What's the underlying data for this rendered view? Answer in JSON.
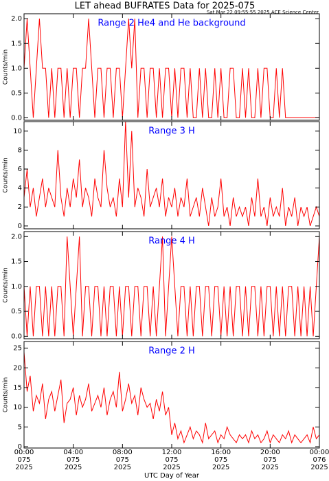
{
  "title": "LET ahead BUFRATES Data for 2025-075",
  "subtitle": "Sat Mar 22 09:55:55 2025 ACE Science Center",
  "xlabel": "UTC Day of Year",
  "chart_data": [
    {
      "type": "line",
      "title": "Range 2 He4 and He background",
      "ylabel": "Counts/min",
      "xlim": [
        0,
        24
      ],
      "ylim": [
        -0.05,
        2.1
      ],
      "yticks": [
        {
          "value": 0,
          "label": "0.0"
        },
        {
          "value": 0.5,
          "label": "0.5"
        },
        {
          "value": 1,
          "label": "1.0"
        },
        {
          "value": 1.5,
          "label": "1.5"
        },
        {
          "value": 2,
          "label": "2.0"
        }
      ],
      "x": [
        0,
        0.25,
        0.5,
        0.75,
        1,
        1.25,
        1.5,
        1.75,
        2,
        2.25,
        2.5,
        2.75,
        3,
        3.25,
        3.5,
        3.75,
        4,
        4.25,
        4.5,
        4.75,
        5,
        5.25,
        5.5,
        5.75,
        6,
        6.25,
        6.5,
        6.75,
        7,
        7.25,
        7.5,
        7.75,
        8,
        8.25,
        8.5,
        8.75,
        9,
        9.25,
        9.5,
        9.75,
        10,
        10.25,
        10.5,
        10.75,
        11,
        11.25,
        11.5,
        11.75,
        12,
        12.25,
        12.5,
        12.75,
        13,
        13.25,
        13.5,
        13.75,
        14,
        14.25,
        14.5,
        14.75,
        15,
        15.25,
        15.5,
        15.75,
        16,
        16.25,
        16.5,
        16.75,
        17,
        17.25,
        17.5,
        17.75,
        18,
        18.25,
        18.5,
        18.75,
        19,
        19.25,
        19.5,
        19.75,
        20,
        20.25,
        20.5,
        20.75,
        21,
        21.25,
        21.5,
        21.75,
        22,
        22.25,
        22.5,
        22.75,
        23,
        23.25,
        23.5,
        23.75,
        24
      ],
      "series": [
        {
          "color": "#ff0000",
          "values": [
            1,
            2,
            1,
            0,
            1,
            2,
            1,
            1,
            0,
            1,
            0,
            1,
            1,
            0,
            1,
            0,
            1,
            1,
            0,
            1,
            1,
            2,
            1,
            0,
            1,
            1,
            0,
            1,
            1,
            0,
            1,
            1,
            0,
            1,
            2,
            1,
            2,
            0,
            1,
            1,
            0,
            1,
            1,
            0,
            1,
            0,
            1,
            1,
            0,
            1,
            0,
            1,
            1,
            0,
            1,
            0,
            0,
            1,
            0,
            1,
            0,
            0,
            1,
            0,
            1,
            0,
            0,
            1,
            1,
            0,
            0,
            1,
            0,
            1,
            0,
            0,
            1,
            0,
            1,
            1,
            0,
            0,
            1,
            0,
            1,
            0,
            0,
            0,
            0,
            0,
            0,
            0,
            0,
            0,
            0,
            0,
            0
          ]
        }
      ]
    },
    {
      "type": "line",
      "title": "Range 3 H",
      "ylabel": "Counts/min",
      "xlim": [
        0,
        24
      ],
      "ylim": [
        -0.3,
        11
      ],
      "yticks": [
        0,
        2,
        4,
        6,
        8,
        10
      ],
      "x": [
        0,
        0.25,
        0.5,
        0.75,
        1,
        1.25,
        1.5,
        1.75,
        2,
        2.25,
        2.5,
        2.75,
        3,
        3.25,
        3.5,
        3.75,
        4,
        4.25,
        4.5,
        4.75,
        5,
        5.25,
        5.5,
        5.75,
        6,
        6.25,
        6.5,
        6.75,
        7,
        7.25,
        7.5,
        7.75,
        8,
        8.25,
        8.5,
        8.75,
        9,
        9.25,
        9.5,
        9.75,
        10,
        10.25,
        10.5,
        10.75,
        11,
        11.25,
        11.5,
        11.75,
        12,
        12.25,
        12.5,
        12.75,
        13,
        13.25,
        13.5,
        13.75,
        14,
        14.25,
        14.5,
        14.75,
        15,
        15.25,
        15.5,
        15.75,
        16,
        16.25,
        16.5,
        16.75,
        17,
        17.25,
        17.5,
        17.75,
        18,
        18.25,
        18.5,
        18.75,
        19,
        19.25,
        19.5,
        19.75,
        20,
        20.25,
        20.5,
        20.75,
        21,
        21.25,
        21.5,
        21.75,
        22,
        22.25,
        22.5,
        22.75,
        23,
        23.25,
        23.5,
        23.75,
        24
      ],
      "series": [
        {
          "color": "#ff0000",
          "values": [
            3,
            6,
            2,
            4,
            1,
            3,
            5,
            2,
            4,
            3,
            2,
            8,
            3,
            1,
            4,
            2,
            5,
            3,
            7,
            2,
            4,
            3,
            1,
            5,
            3,
            2,
            8,
            4,
            2,
            3,
            1,
            5,
            2,
            11,
            3,
            10,
            2,
            4,
            3,
            1,
            6,
            2,
            3,
            4,
            2,
            5,
            1,
            3,
            2,
            4,
            1,
            3,
            2,
            5,
            1,
            2,
            3,
            1,
            4,
            2,
            0,
            3,
            1,
            2,
            5,
            1,
            2,
            0,
            3,
            1,
            2,
            1,
            2,
            0,
            3,
            1,
            5,
            1,
            2,
            0,
            3,
            1,
            2,
            1,
            4,
            0,
            2,
            1,
            3,
            0,
            2,
            1,
            2,
            0,
            1,
            2,
            1
          ]
        }
      ]
    },
    {
      "type": "line",
      "title": "Range 4 H",
      "ylabel": "Counts/min",
      "xlim": [
        0,
        24
      ],
      "ylim": [
        -0.05,
        2.1
      ],
      "yticks": [
        {
          "value": 0,
          "label": "0.0"
        },
        {
          "value": 0.5,
          "label": "0.5"
        },
        {
          "value": 1,
          "label": "1.0"
        },
        {
          "value": 1.5,
          "label": "1.5"
        },
        {
          "value": 2,
          "label": "2.0"
        }
      ],
      "x": [
        0,
        0.25,
        0.5,
        0.75,
        1,
        1.25,
        1.5,
        1.75,
        2,
        2.25,
        2.5,
        2.75,
        3,
        3.25,
        3.5,
        3.75,
        4,
        4.25,
        4.5,
        4.75,
        5,
        5.25,
        5.5,
        5.75,
        6,
        6.25,
        6.5,
        6.75,
        7,
        7.25,
        7.5,
        7.75,
        8,
        8.25,
        8.5,
        8.75,
        9,
        9.25,
        9.5,
        9.75,
        10,
        10.25,
        10.5,
        10.75,
        11,
        11.25,
        11.5,
        11.75,
        12,
        12.25,
        12.5,
        12.75,
        13,
        13.25,
        13.5,
        13.75,
        14,
        14.25,
        14.5,
        14.75,
        15,
        15.25,
        15.5,
        15.75,
        16,
        16.25,
        16.5,
        16.75,
        17,
        17.25,
        17.5,
        17.75,
        18,
        18.25,
        18.5,
        18.75,
        19,
        19.25,
        19.5,
        19.75,
        20,
        20.25,
        20.5,
        20.75,
        21,
        21.25,
        21.5,
        21.75,
        22,
        22.25,
        22.5,
        22.75,
        23,
        23.25,
        23.5,
        23.75,
        24
      ],
      "series": [
        {
          "color": "#ff0000",
          "values": [
            1,
            0,
            1,
            0,
            1,
            1,
            0,
            1,
            0,
            1,
            0,
            1,
            1,
            0,
            2,
            1,
            0,
            1,
            2,
            0,
            1,
            1,
            0,
            1,
            1,
            0,
            1,
            0,
            1,
            1,
            0,
            1,
            0,
            1,
            1,
            0,
            1,
            1,
            0,
            1,
            1,
            0,
            1,
            0,
            1,
            2,
            0,
            1,
            2,
            1,
            0,
            1,
            1,
            0,
            1,
            0,
            1,
            1,
            0,
            1,
            1,
            0,
            1,
            1,
            0,
            1,
            0,
            1,
            0,
            1,
            1,
            0,
            1,
            0,
            1,
            1,
            0,
            1,
            0,
            1,
            1,
            0,
            1,
            0,
            1,
            0,
            1,
            1,
            0,
            1,
            0,
            1,
            0,
            1,
            0,
            1,
            2
          ]
        }
      ]
    },
    {
      "type": "line",
      "title": "Range 2 H",
      "ylabel": "Counts/min",
      "xlim": [
        0,
        24
      ],
      "ylim": [
        -0.35,
        26.7
      ],
      "yticks": [
        0,
        5,
        10,
        15,
        20,
        25
      ],
      "xticks": [
        {
          "value": 0,
          "label": [
            "00:00",
            "075",
            "2025"
          ]
        },
        {
          "value": 4,
          "label": [
            "04:00",
            "075",
            "2025"
          ]
        },
        {
          "value": 8,
          "label": [
            "08:00",
            "075",
            "2025"
          ]
        },
        {
          "value": 12,
          "label": [
            "12:00",
            "075",
            "2025"
          ]
        },
        {
          "value": 16,
          "label": [
            "16:00",
            "075",
            "2025"
          ]
        },
        {
          "value": 20,
          "label": [
            "20:00",
            "075",
            "2025"
          ]
        },
        {
          "value": 24,
          "label": [
            "00:00",
            "076",
            "2025"
          ]
        }
      ],
      "x": [
        0,
        0.25,
        0.5,
        0.75,
        1,
        1.25,
        1.5,
        1.75,
        2,
        2.25,
        2.5,
        2.75,
        3,
        3.25,
        3.5,
        3.75,
        4,
        4.25,
        4.5,
        4.75,
        5,
        5.25,
        5.5,
        5.75,
        6,
        6.25,
        6.5,
        6.75,
        7,
        7.25,
        7.5,
        7.75,
        8,
        8.25,
        8.5,
        8.75,
        9,
        9.25,
        9.5,
        9.75,
        10,
        10.25,
        10.5,
        10.75,
        11,
        11.25,
        11.5,
        11.75,
        12,
        12.25,
        12.5,
        12.75,
        13,
        13.25,
        13.5,
        13.75,
        14,
        14.25,
        14.5,
        14.75,
        15,
        15.25,
        15.5,
        15.75,
        16,
        16.25,
        16.5,
        16.75,
        17,
        17.25,
        17.5,
        17.75,
        18,
        18.25,
        18.5,
        18.75,
        19,
        19.25,
        19.5,
        19.75,
        20,
        20.25,
        20.5,
        20.75,
        21,
        21.25,
        21.5,
        21.75,
        22,
        22.25,
        22.5,
        22.75,
        23,
        23.25,
        23.5,
        23.75,
        24
      ],
      "series": [
        {
          "color": "#ff0000",
          "values": [
            24,
            14,
            18,
            9,
            13,
            11,
            16,
            7,
            12,
            14,
            9,
            13,
            17,
            6,
            11,
            12,
            15,
            8,
            13,
            10,
            12,
            16,
            9,
            11,
            13,
            10,
            15,
            8,
            12,
            14,
            10,
            19,
            9,
            12,
            16,
            11,
            13,
            8,
            15,
            12,
            10,
            11,
            7,
            12,
            9,
            14,
            8,
            10,
            3,
            6,
            2,
            4,
            1,
            3,
            5,
            2,
            4,
            3,
            1,
            6,
            2,
            3,
            4,
            1,
            3,
            2,
            5,
            3,
            2,
            1,
            3,
            2,
            3,
            1,
            4,
            2,
            3,
            1,
            2,
            4,
            1,
            3,
            2,
            1,
            3,
            2,
            4,
            1,
            3,
            2,
            1,
            2,
            3,
            1,
            5,
            2,
            3
          ]
        }
      ]
    }
  ]
}
